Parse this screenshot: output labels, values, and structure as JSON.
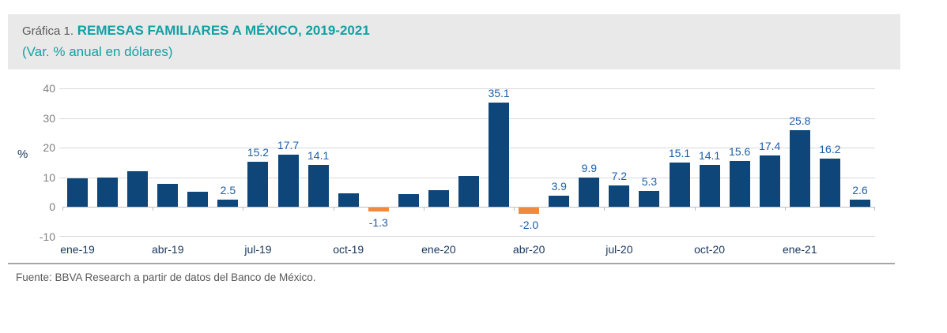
{
  "header": {
    "prefix": "Gráfica 1.",
    "title": "REMESAS FAMILIARES A MÉXICO, 2019-2021",
    "subtitle": "(Var. % anual en dólares)",
    "accent_color": "#11a1a5",
    "band_background": "#e9e9e9"
  },
  "chart_data": {
    "type": "bar",
    "title": "Gráfica 1. REMESAS FAMILIARES A MÉXICO, 2019-2021",
    "subtitle": "(Var. % anual en dólares)",
    "xlabel": "",
    "ylabel": "%",
    "ylim": [
      -10,
      40
    ],
    "yticks": [
      40,
      30,
      20,
      10,
      0,
      -10
    ],
    "grid": true,
    "legend": "none",
    "categories": [
      "ene-19",
      "feb-19",
      "mar-19",
      "abr-19",
      "may-19",
      "jun-19",
      "jul-19",
      "ago-19",
      "sep-19",
      "oct-19",
      "nov-19",
      "dic-19",
      "ene-20",
      "feb-20",
      "mar-20",
      "abr-20",
      "may-20",
      "jun-20",
      "jul-20",
      "ago-20",
      "sep-20",
      "oct-20",
      "nov-20",
      "dic-20",
      "ene-21",
      "feb-21",
      "mar-21"
    ],
    "values": [
      9.6,
      10.0,
      12.2,
      7.8,
      5.2,
      2.5,
      15.2,
      17.7,
      14.1,
      4.7,
      -1.3,
      4.4,
      5.6,
      10.6,
      35.1,
      -2.0,
      3.9,
      9.9,
      7.2,
      5.3,
      15.1,
      14.1,
      15.6,
      17.4,
      25.8,
      16.2,
      2.6
    ],
    "data_labels": [
      "",
      "",
      "",
      "",
      "",
      "2.5",
      "15.2",
      "17.7",
      "14.1",
      "",
      "-1.3",
      "",
      "",
      "",
      "35.1",
      "-2.0",
      "3.9",
      "9.9",
      "7.2",
      "5.3",
      "15.1",
      "14.1",
      "15.6",
      "17.4",
      "25.8",
      "16.2",
      "2.6"
    ],
    "x_tick_labels": [
      "ene-19",
      "abr-19",
      "jul-19",
      "oct-19",
      "ene-20",
      "abr-20",
      "jul-20",
      "oct-20",
      "ene-21"
    ],
    "x_tick_indices": [
      0,
      3,
      6,
      9,
      12,
      15,
      18,
      21,
      24
    ],
    "colors": {
      "positive_bar": "#0e4679",
      "negative_bar": "#f08b3d",
      "data_label": "#1b5fa8",
      "gridline": "#d9d9d9",
      "axis": "#bfbfbf",
      "y_tick_text": "#7f7f7f",
      "x_tick_text": "#17375e"
    }
  },
  "source": {
    "text": "Fuente: BBVA Research a partir de datos del Banco de México."
  }
}
